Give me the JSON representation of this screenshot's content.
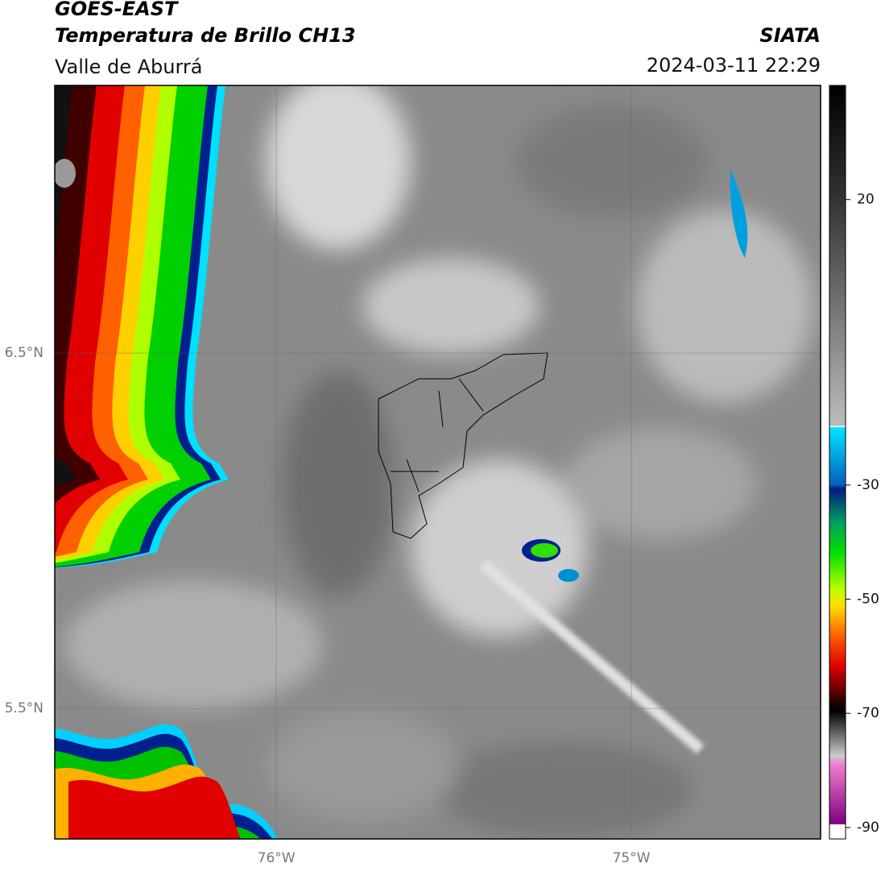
{
  "header": {
    "title": "GOES-EAST",
    "subtitle": "Temperatura de Brillo CH13",
    "region": "Valle de Aburrá",
    "source": "SIATA",
    "datetime": "2024-03-11 22:29"
  },
  "map": {
    "xlim": [
      -76.624,
      -74.467
    ],
    "ylim": [
      5.133,
      7.253
    ],
    "xticks": [
      {
        "value": -76,
        "label": "76°W"
      },
      {
        "value": -75,
        "label": "75°W"
      }
    ],
    "yticks": [
      {
        "value": 6.5,
        "label": "6.5°N"
      },
      {
        "value": 5.5,
        "label": "5.5°N"
      }
    ]
  },
  "colorbar": {
    "lim": [
      -92,
      40
    ],
    "ticks": [
      20,
      -30,
      -50,
      -70,
      -90
    ]
  }
}
